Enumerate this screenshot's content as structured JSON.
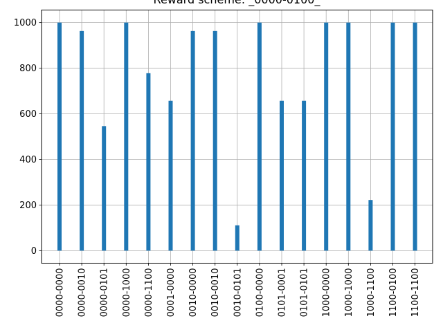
{
  "chart_data": {
    "type": "bar",
    "title": "Reward scheme: _0000-0100_",
    "xlabel": "",
    "ylabel": "",
    "categories": [
      "0000-0000",
      "0000-0010",
      "0000-0101",
      "0000-1000",
      "0000-1100",
      "0001-0000",
      "0010-0000",
      "0010-0010",
      "0010-0101",
      "0100-0000",
      "0101-0001",
      "0101-0101",
      "1000-0000",
      "1000-1000",
      "1000-1100",
      "1100-0100",
      "1100-1100"
    ],
    "values": [
      1000,
      963,
      546,
      1000,
      778,
      657,
      963,
      963,
      111,
      1000,
      657,
      657,
      1000,
      1000,
      222,
      1000,
      1000
    ],
    "ylim": [
      -55,
      1055
    ],
    "yticks": [
      0,
      200,
      400,
      600,
      800,
      1000
    ],
    "grid": true,
    "bar_color": "#1f77b4"
  }
}
